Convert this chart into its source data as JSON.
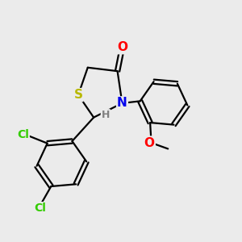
{
  "bg_color": "#ebebeb",
  "bond_color": "#000000",
  "bond_width": 1.6,
  "atom_colors": {
    "S": "#b8b800",
    "N": "#0000ee",
    "O_carbonyl": "#ff0000",
    "O_methoxy": "#ff0000",
    "Cl": "#33cc00",
    "H": "#808080",
    "C": "#000000"
  },
  "font_size": 10,
  "fig_size": [
    3.0,
    3.0
  ],
  "dpi": 100
}
